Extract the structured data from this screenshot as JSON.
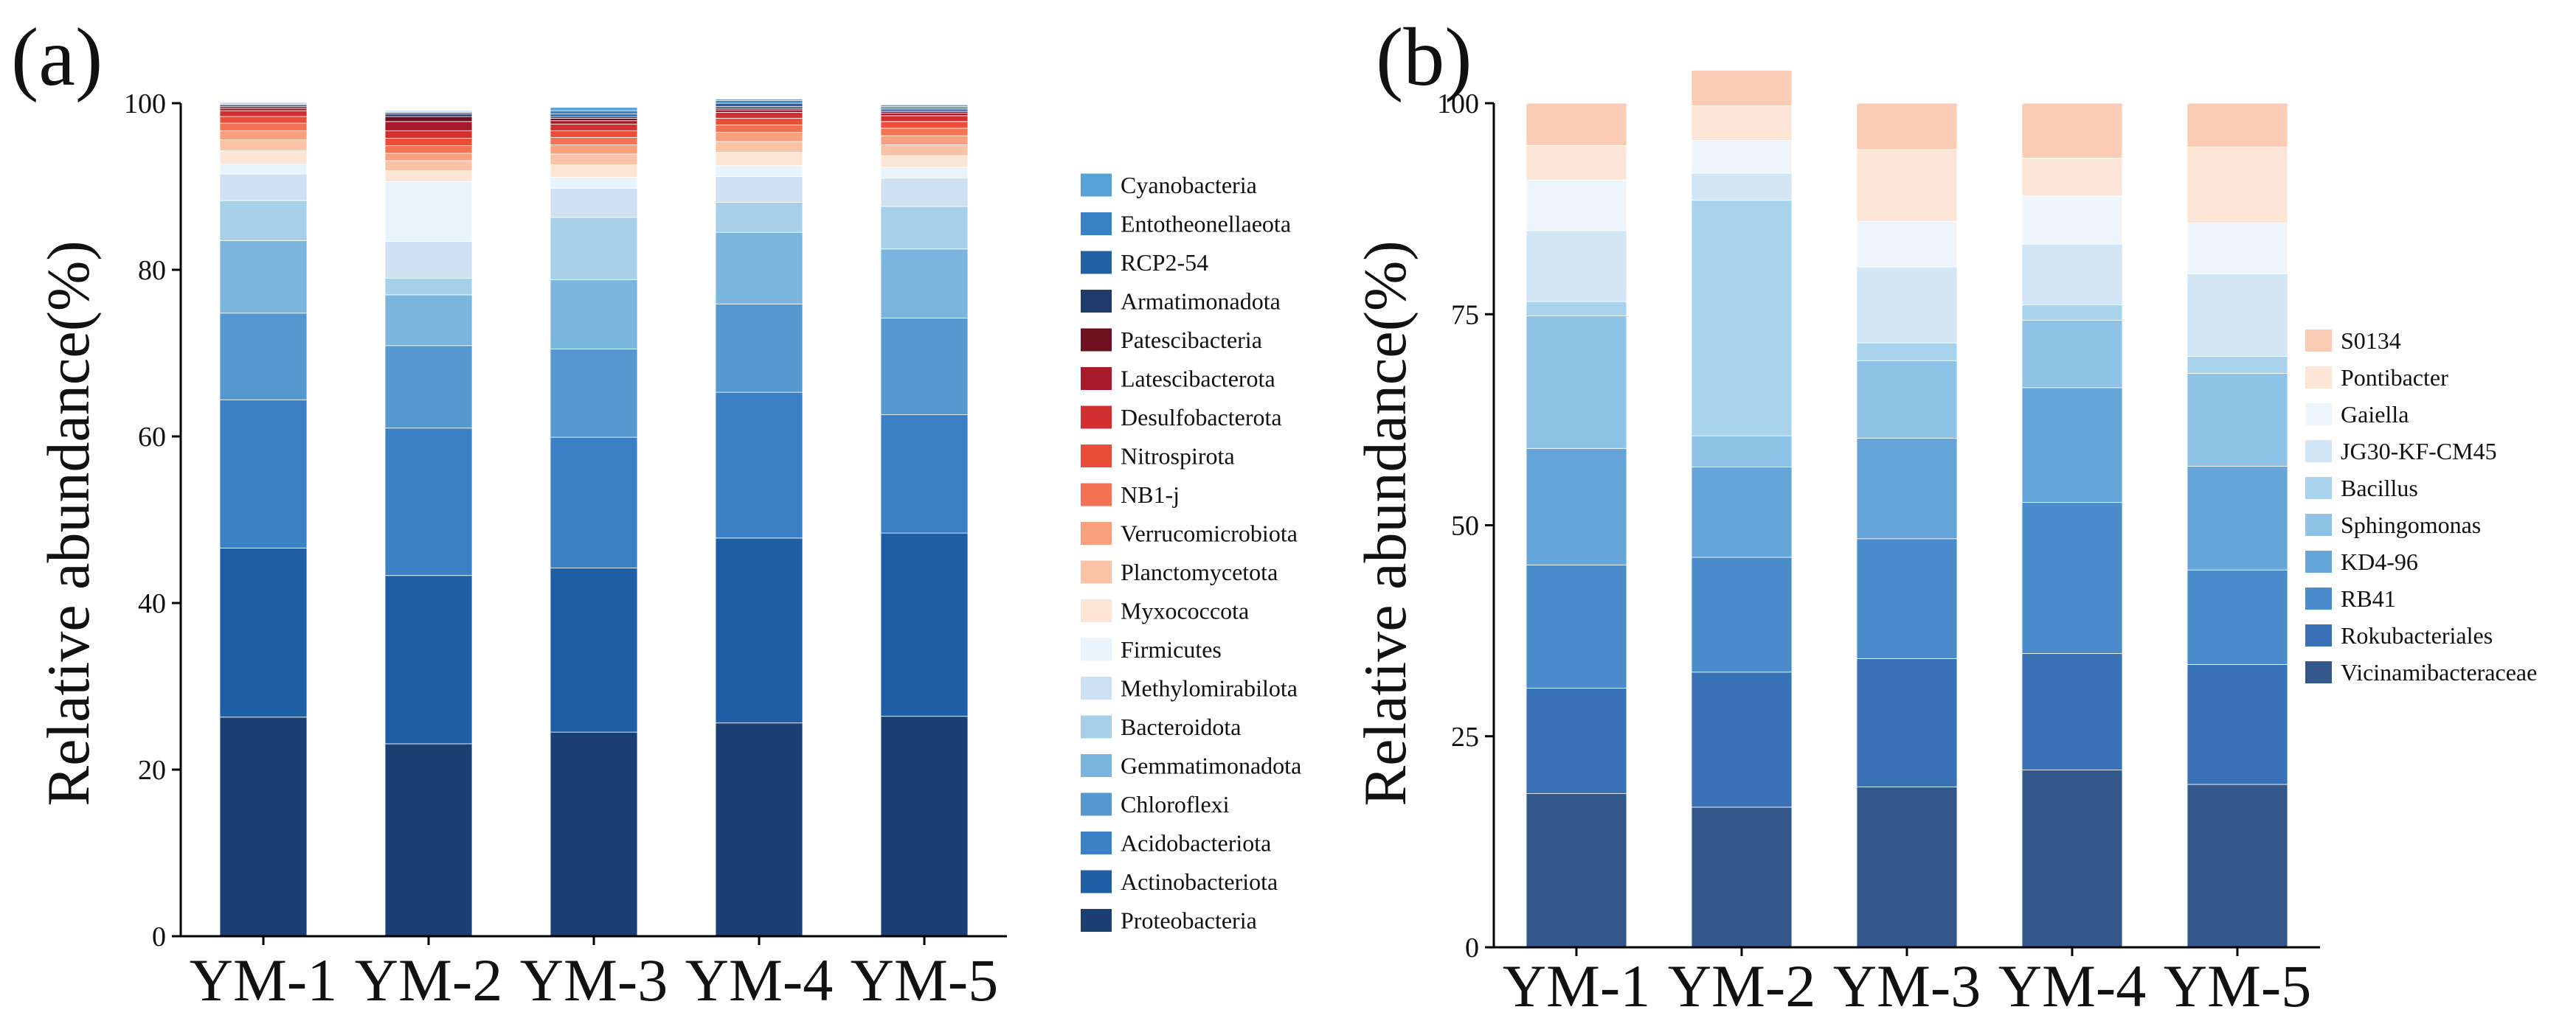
{
  "chart_data": [
    {
      "panel": "(a)",
      "type": "bar",
      "stacked": true,
      "ylabel": "Relative abundance(%)",
      "xlabel": "",
      "ylim": [
        0,
        100
      ],
      "yticks": [
        "0",
        "20",
        "40",
        "60",
        "80",
        "100"
      ],
      "categories": [
        "YM-1",
        "YM-2",
        "YM-3",
        "YM-4",
        "YM-5"
      ],
      "legend_position": "right",
      "series": [
        {
          "name": "Proteobacteria",
          "color": "#1c3f72",
          "values": [
            26.3,
            23.1,
            24.5,
            25.6,
            26.4
          ]
        },
        {
          "name": "Actinobacteriota",
          "color": "#1f5fa6",
          "values": [
            20.3,
            20.2,
            19.7,
            22.2,
            22.0
          ]
        },
        {
          "name": "Acidobacteriota",
          "color": "#3b80c4",
          "values": [
            17.8,
            17.7,
            15.7,
            17.5,
            14.2
          ]
        },
        {
          "name": "Chloroflexi",
          "color": "#5598d0",
          "values": [
            10.4,
            9.9,
            10.6,
            10.6,
            11.6
          ]
        },
        {
          "name": "Gemmatimonadota",
          "color": "#7ab5dd",
          "values": [
            8.7,
            6.1,
            8.3,
            8.6,
            8.3
          ]
        },
        {
          "name": "Bacteroidota",
          "color": "#a8cfe8",
          "values": [
            4.8,
            2.0,
            7.5,
            3.6,
            5.1
          ]
        },
        {
          "name": "Methylomirabilota",
          "color": "#cde1f2",
          "values": [
            3.2,
            4.4,
            3.5,
            3.1,
            3.4
          ]
        },
        {
          "name": "Firmicutes",
          "color": "#e9f3fb",
          "values": [
            1.2,
            7.2,
            1.3,
            1.3,
            1.3
          ]
        },
        {
          "name": "Myxococcota",
          "color": "#fde5d6",
          "values": [
            1.6,
            1.3,
            1.5,
            1.6,
            1.4
          ]
        },
        {
          "name": "Planctomycetota",
          "color": "#fbc3a6",
          "values": [
            1.3,
            1.2,
            1.3,
            1.3,
            1.3
          ]
        },
        {
          "name": "Verrucomicrobiota",
          "color": "#f89f7d",
          "values": [
            1.1,
            0.9,
            1.1,
            1.1,
            1.1
          ]
        },
        {
          "name": "NB1-j",
          "color": "#f47153",
          "values": [
            0.9,
            0.9,
            0.9,
            0.9,
            0.9
          ]
        },
        {
          "name": "Nitrospirota",
          "color": "#ea4e3b",
          "values": [
            0.8,
            0.9,
            0.8,
            0.8,
            0.8
          ]
        },
        {
          "name": "Desulfobacterota",
          "color": "#d22f31",
          "values": [
            0.7,
            0.9,
            0.8,
            0.7,
            0.7
          ]
        },
        {
          "name": "Latescibacterota",
          "color": "#a7192b",
          "values": [
            0.3,
            1.1,
            0.4,
            0.3,
            0.3
          ]
        },
        {
          "name": "Patescibacteria",
          "color": "#6e1020",
          "values": [
            0.2,
            0.6,
            0.3,
            0.2,
            0.2
          ]
        },
        {
          "name": "Armatimonadota",
          "color": "#203a6b",
          "values": [
            0.2,
            0.3,
            0.2,
            0.2,
            0.2
          ]
        },
        {
          "name": "RCP2-54",
          "color": "#2460a4",
          "values": [
            0.1,
            0.2,
            0.3,
            0.4,
            0.2
          ]
        },
        {
          "name": "Entotheonellaeota",
          "color": "#3a82c6",
          "values": [
            0.1,
            0.1,
            0.4,
            0.3,
            0.2
          ]
        },
        {
          "name": "Cyanobacteria",
          "color": "#58a3d6",
          "values": [
            0.1,
            0.1,
            0.4,
            0.2,
            0.2
          ]
        }
      ]
    },
    {
      "panel": "(b)",
      "type": "bar",
      "stacked": true,
      "ylabel": "Relative abundance(%)",
      "xlabel": "",
      "ylim": [
        0,
        100
      ],
      "yticks": [
        "0",
        "25",
        "50",
        "75",
        "100"
      ],
      "categories": [
        "YM-1",
        "YM-2",
        "YM-3",
        "YM-4",
        "YM-5"
      ],
      "legend_position": "right",
      "series": [
        {
          "name": "Vicinamibacteraceae",
          "color": "#34578c",
          "values": [
            18.2,
            16.6,
            19.0,
            21.0,
            19.3
          ]
        },
        {
          "name": "Rokubacteriales",
          "color": "#3871b5",
          "values": [
            12.5,
            16.0,
            15.2,
            13.8,
            14.2
          ]
        },
        {
          "name": "RB41",
          "color": "#4a8bcc",
          "values": [
            14.6,
            13.6,
            14.2,
            17.9,
            11.2
          ]
        },
        {
          "name": "KD4-96",
          "color": "#65a5d9",
          "values": [
            13.8,
            10.7,
            11.9,
            13.6,
            12.3
          ]
        },
        {
          "name": "Sphingomonas",
          "color": "#8ec2e6",
          "values": [
            15.7,
            3.7,
            9.2,
            8.0,
            11.0
          ]
        },
        {
          "name": "Bacillus",
          "color": "#a9d3ec",
          "values": [
            1.7,
            27.9,
            2.1,
            1.8,
            2.0
          ]
        },
        {
          "name": "JG30-KF-CM45",
          "color": "#d3e6f6",
          "values": [
            8.4,
            3.2,
            9.0,
            7.2,
            9.8
          ]
        },
        {
          "name": "Gaiella",
          "color": "#eef5fc",
          "values": [
            6.0,
            3.9,
            5.4,
            5.7,
            6.0
          ]
        },
        {
          "name": "Pontibacter",
          "color": "#fde6d8",
          "values": [
            4.1,
            4.1,
            8.5,
            4.5,
            9.0
          ]
        },
        {
          "name": "S0134",
          "color": "#fbcbb3",
          "values": [
            5.0,
            4.2,
            5.5,
            6.5,
            5.2
          ]
        }
      ]
    }
  ]
}
